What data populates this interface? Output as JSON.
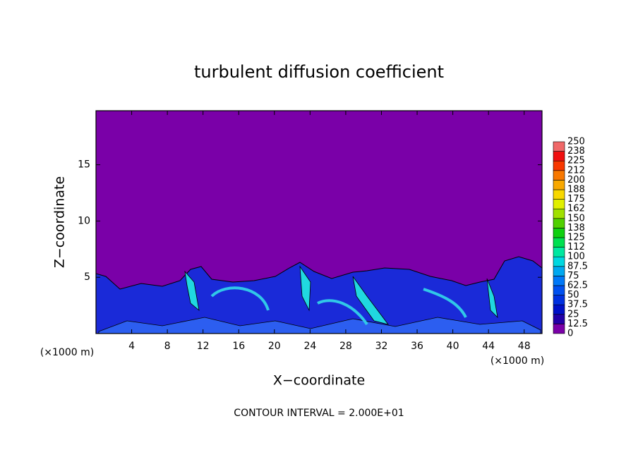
{
  "chart_data": {
    "type": "contour",
    "title": "turbulent diffusion coefficient",
    "x_label": "X−coordinate",
    "y_label": "Z−coordinate",
    "x_unit_left": "(×1000 m)",
    "x_unit_right": "(×1000 m)",
    "annotation": "CONTOUR INTERVAL = 2.000E+01",
    "xlim": [
      0,
      50
    ],
    "ylim": [
      0,
      19.8
    ],
    "xticks": [
      4,
      8,
      12,
      16,
      20,
      24,
      28,
      32,
      36,
      40,
      44,
      48
    ],
    "yticks": [
      5,
      10,
      15
    ],
    "colorbar": {
      "levels": [
        0,
        12.5,
        25,
        37.5,
        50,
        62.5,
        75,
        87.5,
        100,
        112,
        125,
        138,
        150,
        162,
        175,
        188,
        200,
        212,
        225,
        238,
        250
      ],
      "colors": [
        "#7a00a8",
        "#2200a8",
        "#0010c8",
        "#0030e0",
        "#0050f0",
        "#0078f8",
        "#00a8f0",
        "#00d8e0",
        "#00e8a0",
        "#00e050",
        "#10d010",
        "#50d000",
        "#a0e000",
        "#e0f000",
        "#f8d800",
        "#f8a800",
        "#f87800",
        "#f83800",
        "#f01010",
        "#f06868"
      ]
    }
  }
}
